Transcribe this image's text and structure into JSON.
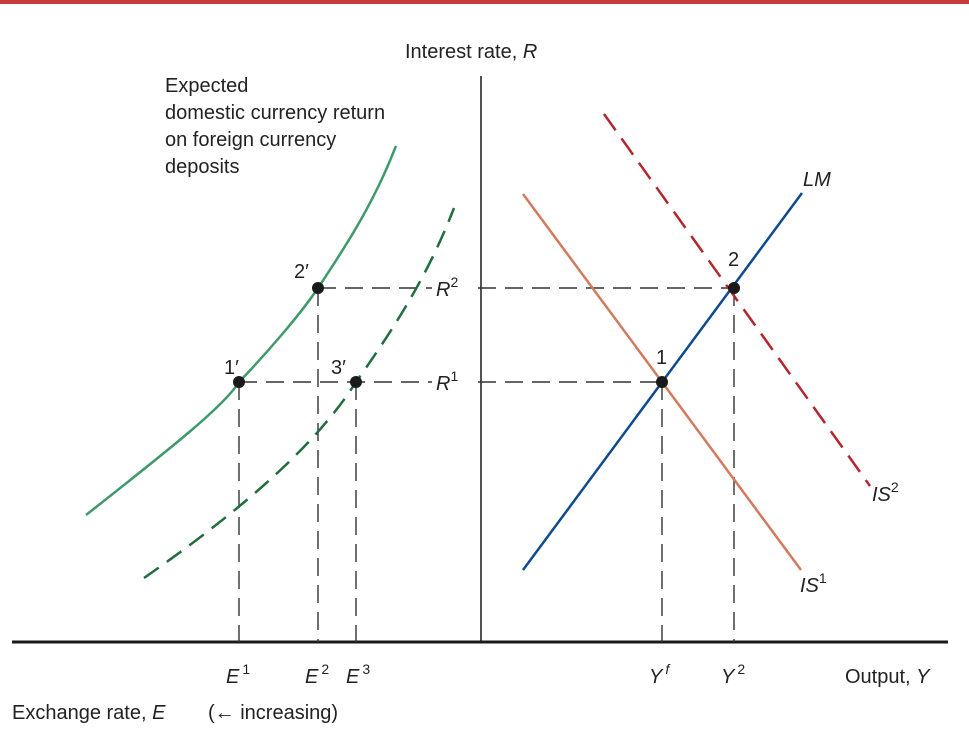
{
  "labels": {
    "y_axis": "Interest rate, ",
    "y_axis_var": "R",
    "x_axis": "Output, ",
    "x_axis_var": "Y",
    "exchange_axis": "Exchange rate, ",
    "exchange_axis_var": "E",
    "exchange_axis_note": "(← increasing)",
    "curve_desc": [
      "Expected",
      "domestic currency return",
      "on foreign currency",
      "deposits"
    ]
  },
  "curves": {
    "lm": "LM",
    "is": "IS",
    "is1_sup": "1",
    "is2_sup": "2"
  },
  "points": {
    "p1": "1",
    "p2": "2",
    "p1p": "1′",
    "p2p": "2′",
    "p3p": "3′"
  },
  "rates": {
    "r": "R",
    "r1_sup": "1",
    "r2_sup": "2"
  },
  "ticks": {
    "e": "E",
    "e1_sup": "1",
    "e2_sup": "2",
    "e3_sup": "3",
    "y": "Y",
    "yf_sup": "f",
    "y2_sup": "2"
  },
  "colors": {
    "top_rule": "#c8393b",
    "green_curve": "#3e9a6a",
    "green_dashed": "#1f6e3d",
    "lm_line": "#0d4a8f",
    "is1_line": "#d27a5e",
    "is2_line": "#b2272d",
    "axis": "#1a1a1a",
    "dash": "#333333"
  }
}
